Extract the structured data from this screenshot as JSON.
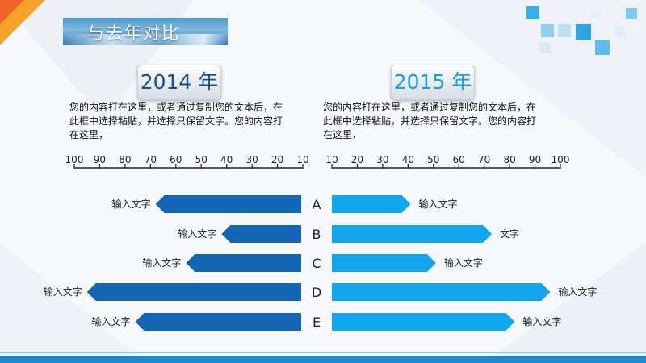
{
  "title": "与去年对比",
  "left": {
    "year_label": "2014 年",
    "description": "您的内容打在这里，或者通过复制您的文本后，在此框中选择粘贴，并选择只保留文字。您的内容打在这里，"
  },
  "right": {
    "year_label": "2015 年",
    "description": "您的内容打在这里，或者通过复制您的文本后，在此框中选择粘贴，并选择只保留文字。您的内容打在这里，"
  },
  "colors": {
    "left_bar": "#1565b5",
    "right_bar": "#12a6ec",
    "axis": "#222222",
    "text": "#222222"
  },
  "chart_data": [
    {
      "type": "bar",
      "orientation": "horizontal",
      "direction": "right-to-left",
      "categories": [
        "A",
        "B",
        "C",
        "D",
        "E"
      ],
      "values": [
        68,
        42,
        56,
        95,
        76
      ],
      "bar_labels": [
        "输入文字",
        "输入文字",
        "输入文字",
        "输入文字",
        "输入文字"
      ],
      "xlim": [
        10,
        100
      ],
      "ticks": [
        100,
        90,
        80,
        70,
        60,
        50,
        40,
        30,
        20,
        10
      ]
    },
    {
      "type": "bar",
      "orientation": "horizontal",
      "direction": "left-to-right",
      "categories": [
        "A",
        "B",
        "C",
        "D",
        "E"
      ],
      "values": [
        41,
        73,
        51,
        96,
        82
      ],
      "bar_labels": [
        "输入文字",
        "文字",
        "输入文字",
        "输入文字",
        "输入文字"
      ],
      "xlim": [
        10,
        100
      ],
      "ticks": [
        10,
        20,
        30,
        40,
        50,
        60,
        70,
        80,
        90,
        100
      ]
    }
  ]
}
